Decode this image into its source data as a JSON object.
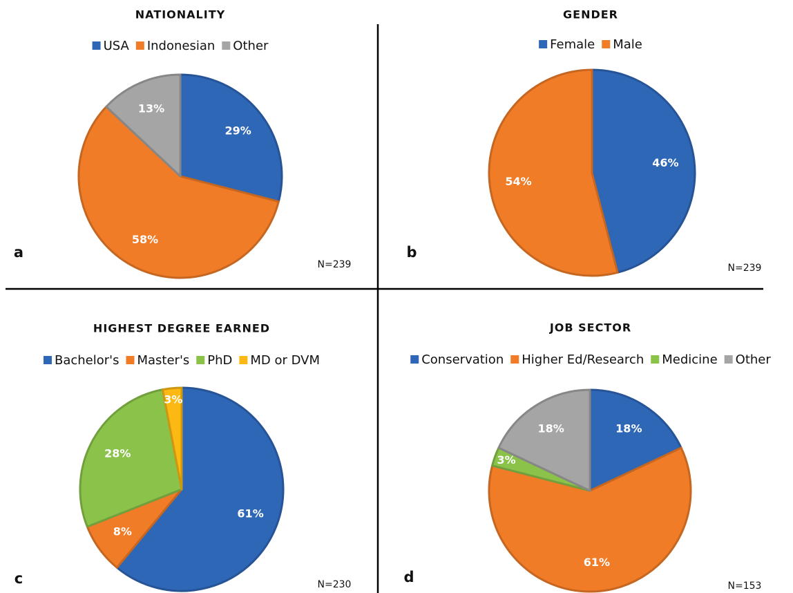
{
  "chart_data": [
    {
      "type": "pie",
      "title": "NATIONALITY",
      "categories": [
        "USA",
        "Indonesian",
        "Other"
      ],
      "values": [
        29,
        58,
        13
      ],
      "value_labels": [
        "29%",
        "58%",
        "13%"
      ],
      "colors": [
        "#2f67b7",
        "#f07c28",
        "#a5a5a5"
      ],
      "panel_label": "a",
      "annotation": "N=239"
    },
    {
      "type": "pie",
      "title": "GENDER",
      "categories": [
        "Female",
        "Male"
      ],
      "values": [
        46,
        54
      ],
      "value_labels": [
        "46%",
        "54%"
      ],
      "colors": [
        "#2f67b7",
        "#f07c28"
      ],
      "panel_label": "b",
      "annotation": "N=239"
    },
    {
      "type": "pie",
      "title": "HIGHEST DEGREE EARNED",
      "categories": [
        "Bachelor's",
        "Master's",
        "PhD",
        "MD or DVM"
      ],
      "values": [
        61,
        8,
        28,
        3
      ],
      "value_labels": [
        "61%",
        "8%",
        "28%",
        "3%"
      ],
      "colors": [
        "#2f67b7",
        "#f07c28",
        "#8bc24a",
        "#fcb813"
      ],
      "panel_label": "c",
      "annotation": "N=230"
    },
    {
      "type": "pie",
      "title": "JOB SECTOR",
      "categories": [
        "Conservation",
        "Higher Ed/Research",
        "Medicine",
        "Other"
      ],
      "values": [
        18,
        61,
        3,
        18
      ],
      "value_labels": [
        "18%",
        "61%",
        "3%",
        "18%"
      ],
      "colors": [
        "#2f67b7",
        "#f07c28",
        "#8bc24a",
        "#a5a5a5"
      ],
      "panel_label": "d",
      "annotation": "N=153"
    }
  ]
}
